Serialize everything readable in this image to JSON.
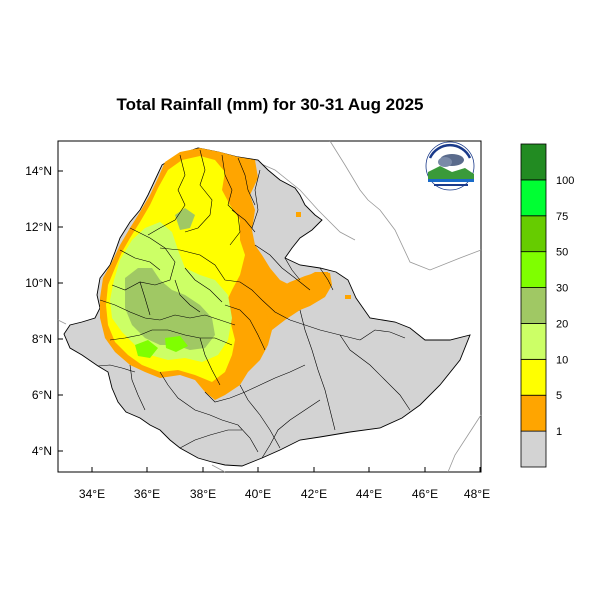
{
  "title": "Total Rainfall (mm) for 30-31 Aug 2025",
  "axes": {
    "lat_labels": [
      "14°N",
      "12°N",
      "10°N",
      "8°N",
      "6°N",
      "4°N"
    ],
    "lon_labels": [
      "34°E",
      "36°E",
      "38°E",
      "40°E",
      "42°E",
      "44°E",
      "46°E",
      "48°E"
    ]
  },
  "colorbar": {
    "labels": [
      "1",
      "5",
      "10",
      "20",
      "30",
      "50",
      "75",
      "100"
    ],
    "colors": [
      "#d3d3d3",
      "#ffa500",
      "#ffff00",
      "#ccff66",
      "#a0c864",
      "#7fff00",
      "#66cc00",
      "#00ff33",
      "#228b22"
    ]
  },
  "legend_icon": "ethiopian-meteorology-institute-logo",
  "colors": {
    "background_land": "#d3d3d3",
    "border": "#000000",
    "neighbor_border": "#888888"
  }
}
